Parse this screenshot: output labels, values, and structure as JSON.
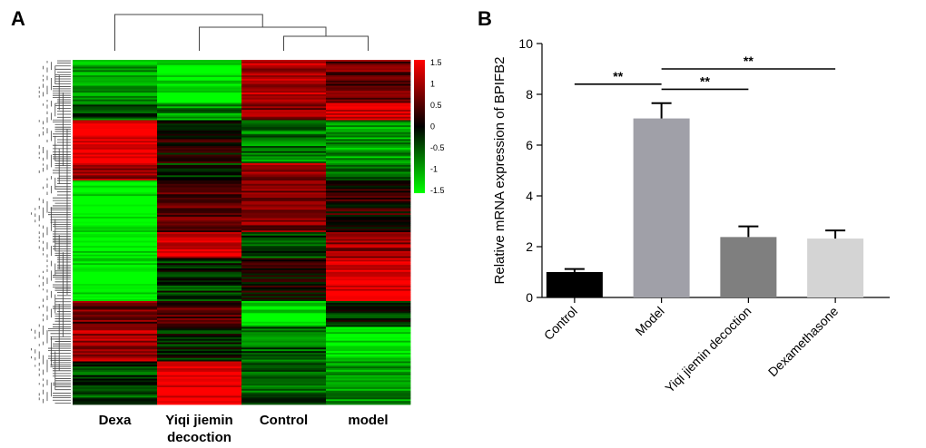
{
  "panels": {
    "a_label": "A",
    "b_label": "B"
  },
  "chart_data": [
    {
      "panel": "A",
      "type": "heatmap",
      "columns": [
        "Dexa",
        "Yiqi jiemin\ndecoction",
        "Control",
        "model"
      ],
      "colorbar": {
        "ticks": [
          "1.5",
          "1",
          "0.5",
          "0",
          "-0.5",
          "-1",
          "-1.5"
        ],
        "min": -1.5,
        "max": 1.5,
        "low_color": "#00ff00",
        "mid_color": "#000000",
        "high_color": "#ff0000"
      },
      "column_dendrogram": "model and Control join first, then Yiqi jiemin decoction, then Dexa",
      "row_blocks": [
        {
          "rows": 25,
          "values": [
            -0.9,
            -1.5,
            1.0,
            0.6
          ]
        },
        {
          "rows": 10,
          "values": [
            -0.5,
            -0.8,
            0.8,
            1.2
          ]
        },
        {
          "rows": 25,
          "values": [
            1.5,
            0.1,
            -0.7,
            -0.9
          ]
        },
        {
          "rows": 10,
          "values": [
            0.8,
            -0.2,
            0.9,
            -0.6
          ]
        },
        {
          "rows": 30,
          "values": [
            -1.5,
            0.5,
            0.7,
            0.2
          ]
        },
        {
          "rows": 15,
          "values": [
            -1.5,
            1.3,
            -0.4,
            0.9
          ]
        },
        {
          "rows": 25,
          "values": [
            -1.5,
            -0.3,
            0.1,
            1.4
          ]
        },
        {
          "rows": 15,
          "values": [
            0.6,
            0.5,
            -1.4,
            -0.2
          ]
        },
        {
          "rows": 20,
          "values": [
            1.0,
            -0.2,
            -0.6,
            -1.3
          ]
        },
        {
          "rows": 25,
          "values": [
            -0.4,
            1.5,
            -0.5,
            -0.9
          ]
        }
      ]
    },
    {
      "panel": "B",
      "type": "bar",
      "categories": [
        "Control",
        "Model",
        "Yiqi jiemin decoction",
        "Dexamethasone"
      ],
      "values": [
        1.0,
        7.05,
        2.38,
        2.32
      ],
      "errors": [
        0.12,
        0.6,
        0.42,
        0.32
      ],
      "colors": [
        "#000000",
        "#a0a0a8",
        "#7f7f7f",
        "#d4d4d4"
      ],
      "ylabel": "Relative mRNA expression of BPIFB2",
      "xlabel": "",
      "ylim": [
        0,
        10
      ],
      "yticks": [
        "0",
        "2",
        "4",
        "6",
        "8",
        "10"
      ],
      "significance": [
        {
          "from": "Control",
          "to": "Model",
          "label": "**"
        },
        {
          "from": "Model",
          "to": "Yiqi jiemin decoction",
          "label": "**"
        },
        {
          "from": "Model",
          "to": "Dexamethasone",
          "label": "**"
        }
      ]
    }
  ]
}
